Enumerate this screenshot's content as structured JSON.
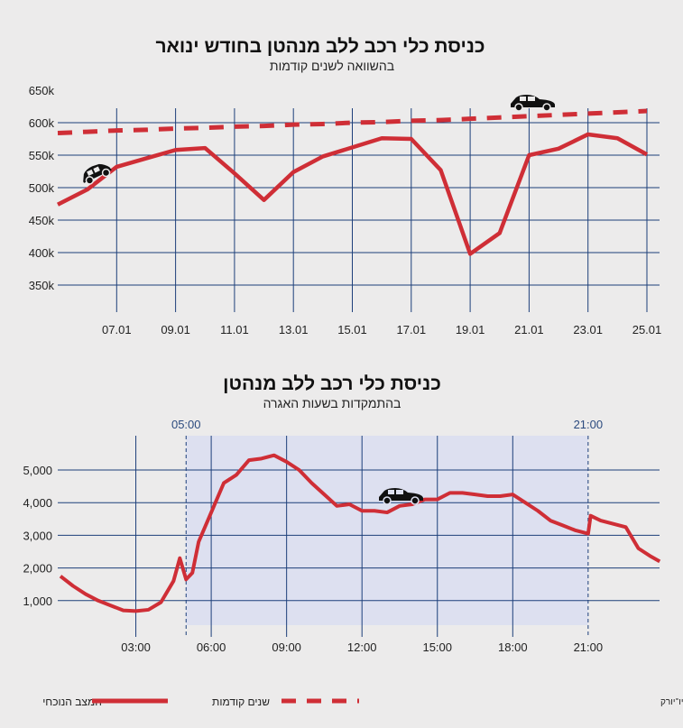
{
  "colors": {
    "current": "#cf2e36",
    "previous": "#cf2e36",
    "grid": "#1d3f7a",
    "shade": "#dde0f0",
    "background": "#ecebeb"
  },
  "icons": [
    "car-icon"
  ],
  "chart_data": [
    {
      "type": "line",
      "title": "כניסת כלי רכב ללב מנהטן בחודש ינואר",
      "subtitle": "בהשוואה לשנים קודמות",
      "x_tick_labels": [
        "07.01",
        "09.01",
        "11.01",
        "13.01",
        "15.01",
        "17.01",
        "19.01",
        "21.01",
        "23.01",
        "25.01"
      ],
      "y_tick_labels": [
        "650k",
        "600k",
        "550k",
        "500k",
        "450k",
        "400k",
        "350k"
      ],
      "ylim": [
        350000,
        650000
      ],
      "x": [
        5,
        6,
        7,
        8,
        9,
        10,
        11,
        12,
        13,
        14,
        15,
        16,
        17,
        18,
        19,
        20,
        21,
        22,
        23,
        24,
        25
      ],
      "series": [
        {
          "name": "המצב הנוכחי",
          "style": "solid",
          "values": [
            474000,
            497000,
            532000,
            545000,
            558000,
            561000,
            522000,
            481000,
            524000,
            548000,
            562000,
            576000,
            575000,
            527000,
            398000,
            430000,
            550000,
            560000,
            582000,
            576000,
            551000
          ]
        },
        {
          "name": "שנים קודמות",
          "style": "dashed",
          "values": [
            584000,
            586000,
            588000,
            589000,
            591000,
            592000,
            594000,
            595000,
            597000,
            598000,
            600000,
            601000,
            603000,
            604000,
            606000,
            608000,
            610000,
            612000,
            614000,
            616000,
            618000
          ]
        }
      ],
      "grid": true
    },
    {
      "type": "line",
      "title": "כניסת כלי רכב ללב מנהטן",
      "subtitle": "בהתמקדות בשעות האגרה",
      "x_tick_labels": [
        "03:00",
        "06:00",
        "09:00",
        "12:00",
        "15:00",
        "18:00",
        "21:00"
      ],
      "y_tick_labels": [
        "5,000",
        "4,000",
        "3,000",
        "2,000",
        "1,000"
      ],
      "highlight": {
        "from": "05:00",
        "to": "21:00"
      },
      "x_hours": [
        0,
        0.5,
        1,
        1.5,
        2,
        2.5,
        3,
        3.5,
        4,
        4.5,
        4.75,
        5,
        5.25,
        5.5,
        6,
        6.5,
        7,
        7.5,
        8,
        8.5,
        9,
        9.5,
        10,
        10.5,
        11,
        11.5,
        12,
        12.5,
        13,
        13.5,
        14,
        14.5,
        15,
        15.5,
        16,
        16.5,
        17,
        17.5,
        18,
        18.5,
        19,
        19.5,
        20,
        20.5,
        21,
        21.1,
        21.5,
        22,
        22.5,
        23,
        23.5,
        23.85
      ],
      "series": [
        {
          "name": "המצב הנוכחי",
          "style": "solid",
          "values": [
            1750,
            1450,
            1200,
            1000,
            850,
            700,
            680,
            720,
            950,
            1600,
            2300,
            1650,
            1850,
            2800,
            3700,
            4600,
            4850,
            5300,
            5350,
            5450,
            5250,
            5000,
            4600,
            4250,
            3900,
            3950,
            3750,
            3750,
            3700,
            3900,
            3950,
            4100,
            4100,
            4300,
            4300,
            4250,
            4200,
            4200,
            4250,
            4000,
            3750,
            3450,
            3300,
            3150,
            3050,
            3600,
            3450,
            3350,
            3250,
            2600,
            2350,
            2200
          ]
        }
      ],
      "grid": true
    }
  ],
  "legend": {
    "current": "המצב הנוכחי",
    "previous": "שנים קודמות"
  },
  "source": "מקור: רשות התחבורה המטרופולינית ניו־יורק"
}
